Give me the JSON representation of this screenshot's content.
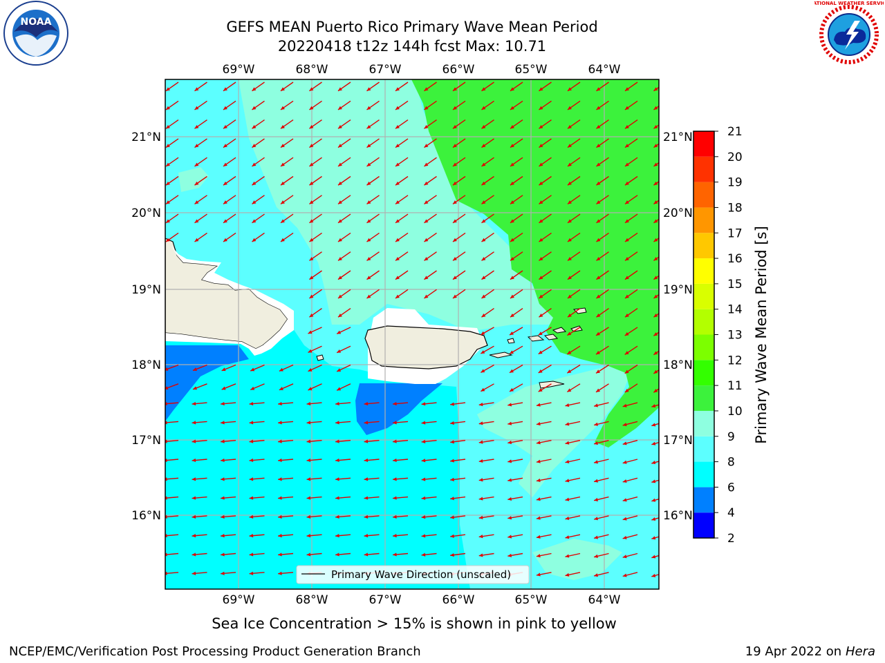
{
  "header": {
    "title_line1": "GEFS MEAN Puerto Rico Primary Wave Mean Period",
    "title_line2": "20220418 t12z 144h fcst   Max: 10.71"
  },
  "map": {
    "lon_labels": [
      "69°W",
      "68°W",
      "67°W",
      "66°W",
      "65°W",
      "64°W"
    ],
    "lat_labels": [
      "21°N",
      "20°N",
      "19°N",
      "18°N",
      "17°N",
      "16°N"
    ],
    "legend_label": "Primary Wave Direction (unscaled)",
    "colors": {
      "cyan_8": "#00ffff",
      "lightcyan_9": "#5cffff",
      "aquamarine_10": "#8effe0",
      "green_11": "#3cf23c",
      "blue_6": "#0080ff",
      "land": "#f0eedf",
      "arrow": "#e00000"
    }
  },
  "colorbar": {
    "label": "Primary Wave Mean Period [s]",
    "ticks": [
      "2",
      "4",
      "6",
      "8",
      "9",
      "10",
      "11",
      "12",
      "13",
      "14",
      "15",
      "16",
      "17",
      "18",
      "19",
      "20",
      "21"
    ],
    "colors": [
      "#0000ff",
      "#0080ff",
      "#00ffff",
      "#5cffff",
      "#8effe0",
      "#3cf23c",
      "#33ff00",
      "#7cff00",
      "#b3ff00",
      "#d9ff00",
      "#ffff00",
      "#ffc800",
      "#ff9600",
      "#ff6400",
      "#ff3200",
      "#ff0000"
    ]
  },
  "footer": {
    "note": "Sea Ice Concentration > 15% is shown in pink to yellow",
    "credit": "NCEP/EMC/Verification Post Processing Product Generation Branch",
    "date_prefix": "19 Apr 2022 on ",
    "date_host": "Hera"
  },
  "logos": {
    "noaa_text": "NOAA",
    "nws_text": "NATIONAL WEATHER SERVICE"
  }
}
